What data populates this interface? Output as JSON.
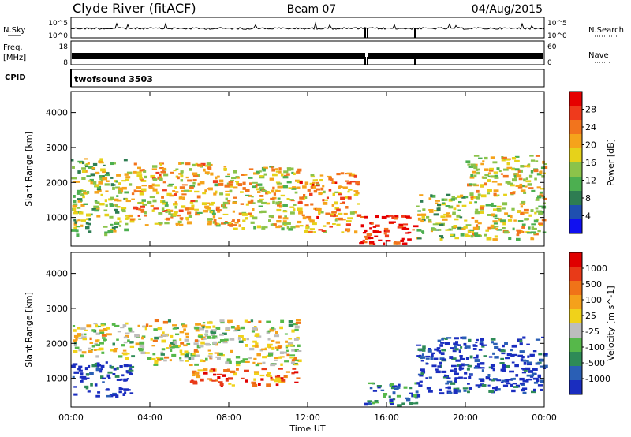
{
  "header": {
    "station": "Clyde River (fitACF)",
    "beam": "Beam 07",
    "date": "04/Aug/2015"
  },
  "labels": {
    "nsky": "N.Sky",
    "nsky_ticks": [
      "10^5",
      "10^0"
    ],
    "nsearch": "N.Search",
    "freq_line1": "Freq.",
    "freq_line2": "[MHz]",
    "freq_ticks": [
      "18",
      "8"
    ],
    "nave": "Nave",
    "nave_ticks": [
      "60",
      "0"
    ],
    "nsearch_ticks": [
      "10^5",
      "10^0"
    ],
    "cpid": "CPID",
    "cpid_value": "twofsound 3503"
  },
  "chart_data": [
    {
      "type": "heatmap",
      "name": "power-panel",
      "xlabel": "",
      "ylabel": "Slant Range [km]",
      "xlim": [
        0,
        24
      ],
      "ylim": [
        180,
        4600
      ],
      "xticks": [
        "00:00",
        "04:00",
        "08:00",
        "12:00",
        "16:00",
        "20:00",
        "00:00"
      ],
      "yticks": [
        1000,
        2000,
        3000,
        4000
      ],
      "colorbar": {
        "label": "Power [dB]",
        "ticks": [
          "4",
          "8",
          "12",
          "16",
          "20",
          "24",
          "28"
        ],
        "colors": [
          "#1010f0",
          "#1f4fb0",
          "#2e7d52",
          "#4caf50",
          "#8bc34a",
          "#e6d21a",
          "#f5a31b",
          "#f2741d",
          "#ef3a1c",
          "#e60000"
        ]
      },
      "bands": [
        {
          "x": [
            0.0,
            3.0
          ],
          "range": [
            500,
            2700
          ],
          "level": 0.45
        },
        {
          "x": [
            3.0,
            7.5
          ],
          "range": [
            800,
            2600
          ],
          "level": 0.6
        },
        {
          "x": [
            7.5,
            11.5
          ],
          "range": [
            700,
            2500
          ],
          "level": 0.55
        },
        {
          "x": [
            11.5,
            14.5
          ],
          "range": [
            600,
            2300
          ],
          "level": 0.7
        },
        {
          "x": [
            14.6,
            17.5
          ],
          "range": [
            250,
            1100
          ],
          "level": 0.9
        },
        {
          "x": [
            17.5,
            20.0
          ],
          "range": [
            400,
            1700
          ],
          "level": 0.45
        },
        {
          "x": [
            20.0,
            24.0
          ],
          "range": [
            400,
            2800
          ],
          "level": 0.55
        }
      ]
    },
    {
      "type": "heatmap",
      "name": "velocity-panel",
      "xlabel": "Time UT",
      "ylabel": "Slant Range [km]",
      "xlim": [
        0,
        24
      ],
      "ylim": [
        180,
        4600
      ],
      "xticks": [
        "00:00",
        "04:00",
        "08:00",
        "12:00",
        "16:00",
        "20:00",
        "00:00"
      ],
      "yticks": [
        1000,
        2000,
        3000,
        4000
      ],
      "colorbar": {
        "label": "Velocity [m s^-1]",
        "ticks": [
          "1000",
          "500",
          "100",
          "25",
          "-25",
          "-100",
          "-500",
          "-1000"
        ],
        "colors": [
          "#1a2dbf",
          "#2a5fb5",
          "#2e8b57",
          "#56b84a",
          "#bdbdbd",
          "#f0d21a",
          "#f5a11b",
          "#f07318",
          "#e83a18",
          "#e00000"
        ]
      },
      "bands": [
        {
          "x": [
            0.0,
            4.0
          ],
          "range": [
            1600,
            2600
          ],
          "level": 0.5
        },
        {
          "x": [
            4.0,
            11.5
          ],
          "range": [
            1400,
            2700
          ],
          "level": 0.5
        },
        {
          "x": [
            0.0,
            3.0
          ],
          "range": [
            500,
            1500
          ],
          "level": 0.05
        },
        {
          "x": [
            6.0,
            11.5
          ],
          "range": [
            800,
            1300
          ],
          "level": 0.75
        },
        {
          "x": [
            14.8,
            17.5
          ],
          "range": [
            250,
            900
          ],
          "level": 0.2
        },
        {
          "x": [
            17.5,
            24.0
          ],
          "range": [
            600,
            2200
          ],
          "level": 0.05
        }
      ]
    }
  ]
}
